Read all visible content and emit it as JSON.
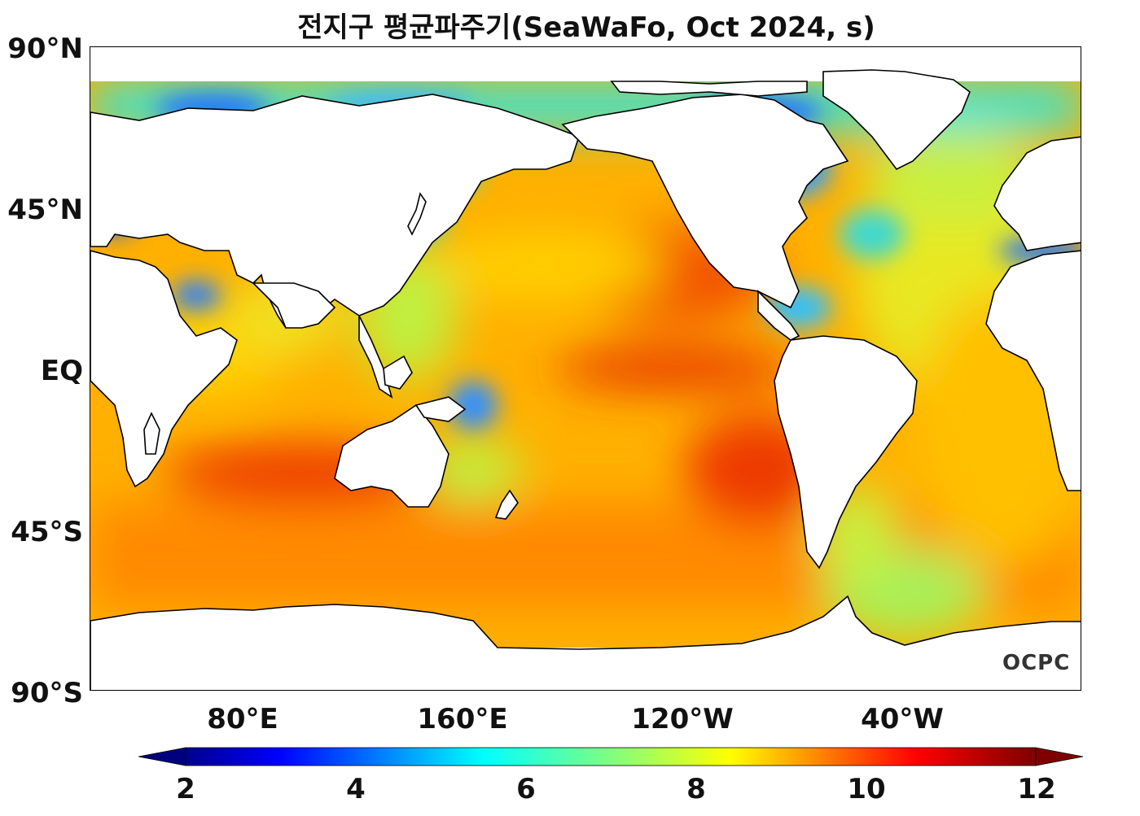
{
  "title": "전지구 평균파주기(SeaWaFo, Oct 2024, s)",
  "lat_ticks": [
    "90°N",
    "45°N",
    "EQ",
    "45°S",
    "90°S"
  ],
  "lon_ticks": [
    "80°E",
    "160°E",
    "120°W",
    "40°W"
  ],
  "logo": "OCPC",
  "colorbar": {
    "min": 2,
    "max": 12,
    "ticks": [
      "2",
      "4",
      "6",
      "8",
      "10",
      "12"
    ],
    "colormap": "jet",
    "extend": "both"
  },
  "map_data": {
    "variable": "mean wave period",
    "units": "s",
    "lon_range": [
      20,
      380
    ],
    "lat_range": [
      -90,
      90
    ],
    "colors": {
      "ocean_high": "#e83000",
      "ocean_mid": "#ffa000",
      "ocean_low": "#30f0c0",
      "ice_low": "#1040ff",
      "land": "#ffffff",
      "coast": "#000000"
    }
  }
}
